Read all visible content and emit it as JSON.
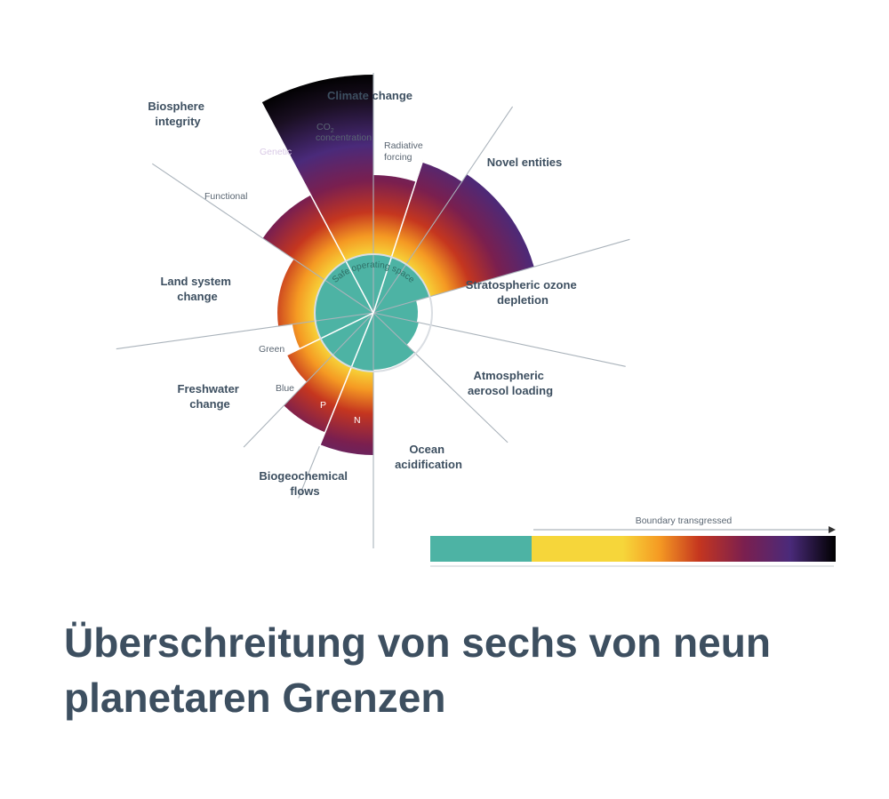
{
  "diagram": {
    "title_lines": [
      "Überschreitung von sechs von neun",
      "planetaren Grenzen"
    ],
    "center_label": "Safe operating space",
    "colors": {
      "safe": "#4db3a4",
      "heading": "#3d4f60",
      "label": "#4a5868",
      "gradient": [
        "#4db3a4",
        "#f6d63a",
        "#f59a23",
        "#c5361f",
        "#7a1f4f",
        "#4a2a7a",
        "#000000"
      ]
    },
    "boundaries": [
      {
        "id": "climate-change",
        "name_lines": [
          "Climate change"
        ],
        "status": "transgressed"
      },
      {
        "id": "novel-entities",
        "name_lines": [
          "Novel entities"
        ],
        "status": "transgressed"
      },
      {
        "id": "stratospheric-ozone-depletion",
        "name_lines": [
          "Stratospheric ozone",
          "depletion"
        ],
        "status": "safe"
      },
      {
        "id": "atmospheric-aerosol-loading",
        "name_lines": [
          "Atmospheric",
          "aerosol loading"
        ],
        "status": "safe"
      },
      {
        "id": "ocean-acidification",
        "name_lines": [
          "Ocean",
          "acidification"
        ],
        "status": "safe"
      },
      {
        "id": "biogeochemical-flows",
        "name_lines": [
          "Biogeochemical",
          "flows"
        ],
        "status": "transgressed"
      },
      {
        "id": "freshwater-change",
        "name_lines": [
          "Freshwater",
          "change"
        ],
        "status": "transgressed"
      },
      {
        "id": "land-system-change",
        "name_lines": [
          "Land system",
          "change"
        ],
        "status": "transgressed"
      },
      {
        "id": "biosphere-integrity",
        "name_lines": [
          "Biosphere",
          "integrity"
        ],
        "status": "transgressed"
      }
    ],
    "sub_labels": {
      "co2_prefix": "CO",
      "co2_subscript": "2",
      "co2_suffix": "concentration",
      "radiative_forcing_lines": [
        "Radiative",
        "forcing"
      ],
      "genetic": "Genetic",
      "functional": "Functional",
      "green": "Green",
      "blue": "Blue",
      "phosphorus": "P",
      "nitrogen": "N"
    },
    "legend": {
      "label": "Boundary transgressed"
    }
  }
}
